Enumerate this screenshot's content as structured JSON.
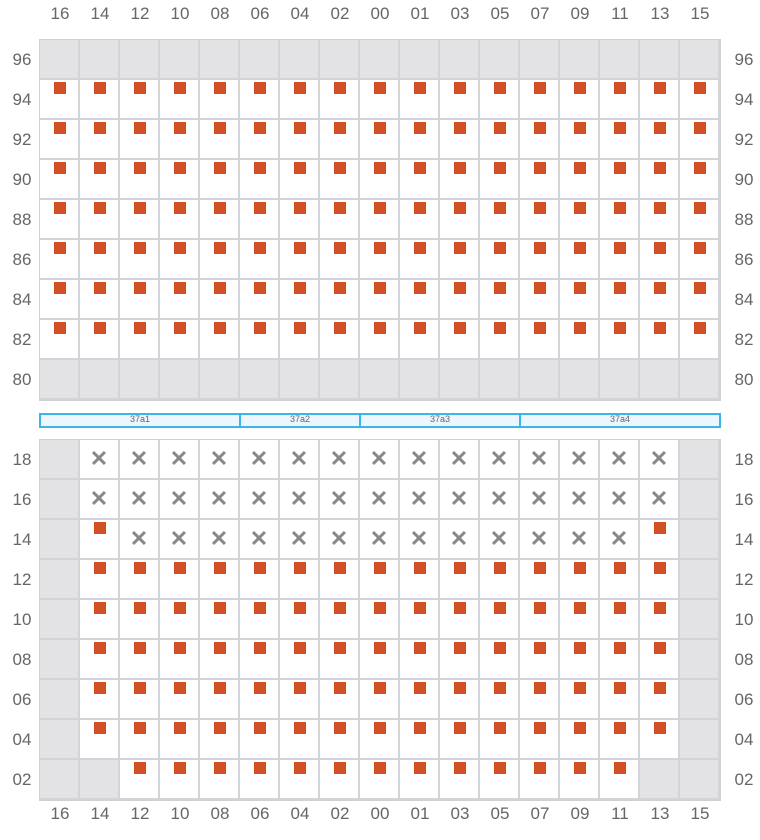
{
  "columns": [
    "16",
    "14",
    "12",
    "10",
    "08",
    "06",
    "04",
    "02",
    "00",
    "01",
    "03",
    "05",
    "07",
    "09",
    "11",
    "13",
    "15"
  ],
  "colors": {
    "filled": "#d35027",
    "unavailable": "#e3e3e6",
    "blocked": "#888888",
    "segment": "#3bb5ec"
  },
  "legend_codes": {
    "g": "unavailable",
    "s": "filled-square",
    "x": "blocked-x",
    "e": "empty"
  },
  "top_block": {
    "rows": [
      {
        "label": "96",
        "cells": "ggggggggggggggggg"
      },
      {
        "label": "94",
        "cells": "sssssssssssssssss"
      },
      {
        "label": "92",
        "cells": "sssssssssssssssss"
      },
      {
        "label": "90",
        "cells": "sssssssssssssssss"
      },
      {
        "label": "88",
        "cells": "sssssssssssssssss"
      },
      {
        "label": "86",
        "cells": "sssssssssssssssss"
      },
      {
        "label": "84",
        "cells": "sssssssssssssssss"
      },
      {
        "label": "82",
        "cells": "sssssssssssssssss"
      },
      {
        "label": "80",
        "cells": "ggggggggggggggggg"
      }
    ]
  },
  "segments": [
    {
      "label": "37a1",
      "from": "16",
      "to": "08"
    },
    {
      "label": "37a2",
      "from": "06",
      "to": "02"
    },
    {
      "label": "37a3",
      "from": "00",
      "to": "05"
    },
    {
      "label": "37a4",
      "from": "07",
      "to": "15"
    }
  ],
  "bottom_block": {
    "rows": [
      {
        "label": "18",
        "cells": "gxxxxxxxxxxxxxxxg"
      },
      {
        "label": "16",
        "cells": "gxxxxxxxxxxxxxxxg"
      },
      {
        "label": "14",
        "cells": "gsxxxxxxxxxxxxxsg"
      },
      {
        "label": "12",
        "cells": "gsssssssssssssssg"
      },
      {
        "label": "10",
        "cells": "gsssssssssssssssg"
      },
      {
        "label": "08",
        "cells": "gsssssssssssssssg"
      },
      {
        "label": "06",
        "cells": "gsssssssssssssssg"
      },
      {
        "label": "04",
        "cells": "gsssssssssssssssg"
      },
      {
        "label": "02",
        "cells": "ggsssssssssssssgg"
      }
    ]
  }
}
